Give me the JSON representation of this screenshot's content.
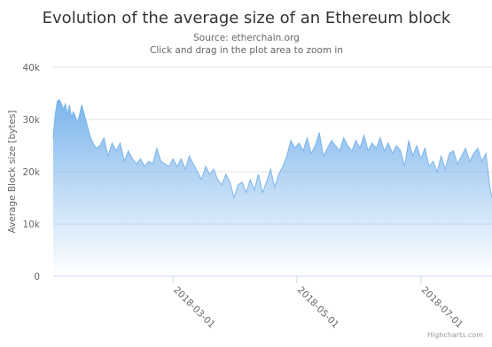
{
  "chart_data": {
    "type": "area",
    "title": "Evolution of the average size of an Ethereum block",
    "subtitle_lines": [
      "Source: etherchain.org",
      "Click and drag in the plot area to zoom in"
    ],
    "ylabel": "Average Block size [bytes]",
    "xlabel": "",
    "ylim": [
      0,
      40000
    ],
    "yticks": [
      {
        "value": 0,
        "label": "0"
      },
      {
        "value": 10000,
        "label": "10k"
      },
      {
        "value": 20000,
        "label": "20k"
      },
      {
        "value": 30000,
        "label": "30k"
      },
      {
        "value": 40000,
        "label": "40k"
      }
    ],
    "xrange": [
      "2018-01-01",
      "2018-08-05"
    ],
    "xticks": [
      "2018-03-01",
      "2018-05-01",
      "2018-07-01"
    ],
    "grid": true,
    "credits": "Highcharts.com",
    "series": [
      {
        "color": "#7cb5ec",
        "points": [
          [
            "2018-01-01",
            26500
          ],
          [
            "2018-01-02",
            31000
          ],
          [
            "2018-01-03",
            33500
          ],
          [
            "2018-01-04",
            33800
          ],
          [
            "2018-01-05",
            33000
          ],
          [
            "2018-01-06",
            32000
          ],
          [
            "2018-01-07",
            33000
          ],
          [
            "2018-01-08",
            31000
          ],
          [
            "2018-01-09",
            32800
          ],
          [
            "2018-01-10",
            30500
          ],
          [
            "2018-01-11",
            31500
          ],
          [
            "2018-01-12",
            30500
          ],
          [
            "2018-01-13",
            29500
          ],
          [
            "2018-01-14",
            31000
          ],
          [
            "2018-01-15",
            32800
          ],
          [
            "2018-01-16",
            31500
          ],
          [
            "2018-01-17",
            30000
          ],
          [
            "2018-01-18",
            28500
          ],
          [
            "2018-01-19",
            27000
          ],
          [
            "2018-01-20",
            26000
          ],
          [
            "2018-01-22",
            24500
          ],
          [
            "2018-01-24",
            25000
          ],
          [
            "2018-01-26",
            26500
          ],
          [
            "2018-01-28",
            23000
          ],
          [
            "2018-01-30",
            25500
          ],
          [
            "2018-02-01",
            24000
          ],
          [
            "2018-02-03",
            25500
          ],
          [
            "2018-02-05",
            22000
          ],
          [
            "2018-02-07",
            24000
          ],
          [
            "2018-02-09",
            22500
          ],
          [
            "2018-02-11",
            21500
          ],
          [
            "2018-02-13",
            22500
          ],
          [
            "2018-02-15",
            21000
          ],
          [
            "2018-02-17",
            22000
          ],
          [
            "2018-02-19",
            21500
          ],
          [
            "2018-02-21",
            24500
          ],
          [
            "2018-02-23",
            22000
          ],
          [
            "2018-02-25",
            21500
          ],
          [
            "2018-02-27",
            21000
          ],
          [
            "2018-03-01",
            22500
          ],
          [
            "2018-03-03",
            21000
          ],
          [
            "2018-03-05",
            22500
          ],
          [
            "2018-03-07",
            20500
          ],
          [
            "2018-03-09",
            23000
          ],
          [
            "2018-03-11",
            21500
          ],
          [
            "2018-03-13",
            20000
          ],
          [
            "2018-03-15",
            18500
          ],
          [
            "2018-03-17",
            21000
          ],
          [
            "2018-03-19",
            19500
          ],
          [
            "2018-03-21",
            20500
          ],
          [
            "2018-03-23",
            18500
          ],
          [
            "2018-03-25",
            17500
          ],
          [
            "2018-03-27",
            19500
          ],
          [
            "2018-03-29",
            18000
          ],
          [
            "2018-03-31",
            15000
          ],
          [
            "2018-04-02",
            17500
          ],
          [
            "2018-04-04",
            18000
          ],
          [
            "2018-04-06",
            16000
          ],
          [
            "2018-04-08",
            18500
          ],
          [
            "2018-04-10",
            16500
          ],
          [
            "2018-04-12",
            19500
          ],
          [
            "2018-04-14",
            16000
          ],
          [
            "2018-04-16",
            18000
          ],
          [
            "2018-04-18",
            20500
          ],
          [
            "2018-04-20",
            17000
          ],
          [
            "2018-04-22",
            19500
          ],
          [
            "2018-04-24",
            21000
          ],
          [
            "2018-04-26",
            23000
          ],
          [
            "2018-04-28",
            26000
          ],
          [
            "2018-04-30",
            24500
          ],
          [
            "2018-05-02",
            25500
          ],
          [
            "2018-05-04",
            24000
          ],
          [
            "2018-05-06",
            26500
          ],
          [
            "2018-05-08",
            23500
          ],
          [
            "2018-05-10",
            25000
          ],
          [
            "2018-05-12",
            27500
          ],
          [
            "2018-05-14",
            23000
          ],
          [
            "2018-05-16",
            24500
          ],
          [
            "2018-05-18",
            26000
          ],
          [
            "2018-05-20",
            25000
          ],
          [
            "2018-05-22",
            24000
          ],
          [
            "2018-05-24",
            26500
          ],
          [
            "2018-05-26",
            25000
          ],
          [
            "2018-05-28",
            24000
          ],
          [
            "2018-05-30",
            26000
          ],
          [
            "2018-06-01",
            24500
          ],
          [
            "2018-06-03",
            27000
          ],
          [
            "2018-06-05",
            24000
          ],
          [
            "2018-06-07",
            25500
          ],
          [
            "2018-06-09",
            24500
          ],
          [
            "2018-06-11",
            26500
          ],
          [
            "2018-06-13",
            24000
          ],
          [
            "2018-06-15",
            25500
          ],
          [
            "2018-06-17",
            23500
          ],
          [
            "2018-06-19",
            25000
          ],
          [
            "2018-06-21",
            24000
          ],
          [
            "2018-06-23",
            21000
          ],
          [
            "2018-06-25",
            26000
          ],
          [
            "2018-06-27",
            23000
          ],
          [
            "2018-06-29",
            25000
          ],
          [
            "2018-07-01",
            22500
          ],
          [
            "2018-07-03",
            24500
          ],
          [
            "2018-07-05",
            21000
          ],
          [
            "2018-07-07",
            22000
          ],
          [
            "2018-07-09",
            20000
          ],
          [
            "2018-07-11",
            23000
          ],
          [
            "2018-07-13",
            20500
          ],
          [
            "2018-07-15",
            23500
          ],
          [
            "2018-07-17",
            24000
          ],
          [
            "2018-07-19",
            21500
          ],
          [
            "2018-07-21",
            23000
          ],
          [
            "2018-07-23",
            24500
          ],
          [
            "2018-07-25",
            22000
          ],
          [
            "2018-07-27",
            23500
          ],
          [
            "2018-07-29",
            24500
          ],
          [
            "2018-07-31",
            22000
          ],
          [
            "2018-08-02",
            23500
          ],
          [
            "2018-08-04",
            17000
          ],
          [
            "2018-08-05",
            15000
          ]
        ]
      }
    ]
  }
}
